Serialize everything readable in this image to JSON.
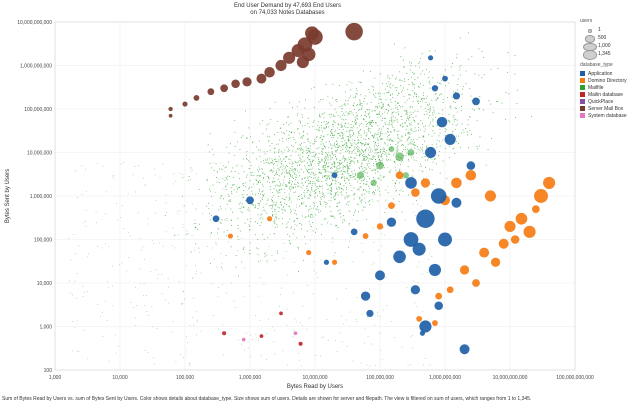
{
  "chart_data": {
    "type": "scatter",
    "title": "End User Demand by 47,693 End Users",
    "subtitle": "on 74,033 Notes Databases",
    "xlabel": "Bytes Read by Users",
    "ylabel": "Bytes Sent by Users",
    "x_scale": "log",
    "y_scale": "log",
    "xlim": [
      1000,
      100000000000
    ],
    "ylim": [
      100,
      10000000000
    ],
    "x_ticks": [
      "1,000",
      "10,000",
      "100,000",
      "1,000,000",
      "10,000,000",
      "100,000,000",
      "1,000,000,000",
      "10,000,000,000",
      "100,000,000,000"
    ],
    "y_ticks": [
      "100",
      "1,000",
      "10,000",
      "100,000",
      "1,000,000",
      "10,000,000",
      "100,000,000",
      "1,000,000,000",
      "10,000,000,000"
    ],
    "grid": true,
    "legend_position": "right",
    "size_legend": {
      "title": "users",
      "entries": [
        "1",
        "500",
        "1,000",
        "1,345"
      ]
    },
    "color_legend": {
      "title": "database_type",
      "entries": [
        {
          "name": "Application",
          "color": "#1f5fa8"
        },
        {
          "name": "Domino Directory",
          "color": "#f57c14"
        },
        {
          "name": "Mailfile",
          "color": "#2ca02c"
        },
        {
          "name": "Mailin database",
          "color": "#c0282a"
        },
        {
          "name": "QuickPlace",
          "color": "#8a4fa6"
        },
        {
          "name": "Server Mail Box",
          "color": "#7a3b2e"
        },
        {
          "name": "System database",
          "color": "#e377c2"
        }
      ]
    },
    "series": [
      {
        "name": "Server Mail Box",
        "points": [
          {
            "x": 40000000,
            "y": 6000000000,
            "users": 1200
          },
          {
            "x": 10000000,
            "y": 4500000000,
            "users": 900
          },
          {
            "x": 7000000,
            "y": 3000000000,
            "users": 800
          },
          {
            "x": 9000000,
            "y": 5500000000,
            "users": 700
          },
          {
            "x": 8000000,
            "y": 1800000000,
            "users": 650
          },
          {
            "x": 5500000,
            "y": 2200000000,
            "users": 600
          },
          {
            "x": 4000000,
            "y": 1500000000,
            "users": 500
          },
          {
            "x": 6500000,
            "y": 1200000000,
            "users": 500
          },
          {
            "x": 3000000,
            "y": 1000000000,
            "users": 400
          },
          {
            "x": 2000000,
            "y": 700000000,
            "users": 350
          },
          {
            "x": 1500000,
            "y": 500000000,
            "users": 300
          },
          {
            "x": 900000,
            "y": 420000000,
            "users": 250
          },
          {
            "x": 600000,
            "y": 380000000,
            "users": 200
          },
          {
            "x": 400000,
            "y": 300000000,
            "users": 150
          },
          {
            "x": 250000,
            "y": 250000000,
            "users": 100
          },
          {
            "x": 150000,
            "y": 180000000,
            "users": 60
          },
          {
            "x": 100000,
            "y": 130000000,
            "users": 40
          },
          {
            "x": 60000,
            "y": 100000000,
            "users": 20
          },
          {
            "x": 60000,
            "y": 70000000,
            "users": 10
          }
        ]
      },
      {
        "name": "Application",
        "points": [
          {
            "x": 500000000,
            "y": 300000,
            "users": 1345
          },
          {
            "x": 800000000,
            "y": 1000000,
            "users": 900
          },
          {
            "x": 300000000,
            "y": 100000,
            "users": 800
          },
          {
            "x": 1000000000,
            "y": 100000,
            "users": 700
          },
          {
            "x": 400000000,
            "y": 60000,
            "users": 600
          },
          {
            "x": 200000000,
            "y": 40000,
            "users": 550
          },
          {
            "x": 700000000,
            "y": 20000,
            "users": 500
          },
          {
            "x": 500000000,
            "y": 1000,
            "users": 500
          },
          {
            "x": 300000000,
            "y": 2000000,
            "users": 450
          },
          {
            "x": 1200000000,
            "y": 20000000,
            "users": 400
          },
          {
            "x": 600000000,
            "y": 10000000,
            "users": 400
          },
          {
            "x": 900000000,
            "y": 50000000,
            "users": 350
          },
          {
            "x": 1500000000,
            "y": 700000,
            "users": 300
          },
          {
            "x": 100000000,
            "y": 15000,
            "users": 300
          },
          {
            "x": 2000000000,
            "y": 300,
            "users": 300
          },
          {
            "x": 350000000,
            "y": 7000,
            "users": 250
          },
          {
            "x": 60000000,
            "y": 5000,
            "users": 250
          },
          {
            "x": 150000000,
            "y": 250000,
            "users": 250
          },
          {
            "x": 800000000,
            "y": 3000,
            "users": 200
          },
          {
            "x": 2500000000,
            "y": 5000000,
            "users": 200
          },
          {
            "x": 3000000000,
            "y": 150000000,
            "users": 150
          },
          {
            "x": 1000000,
            "y": 800000,
            "users": 150
          },
          {
            "x": 1500000000,
            "y": 200000000,
            "users": 120
          },
          {
            "x": 70000000,
            "y": 2000,
            "users": 120
          },
          {
            "x": 300000,
            "y": 300000,
            "users": 100
          },
          {
            "x": 40000000,
            "y": 150000,
            "users": 100
          },
          {
            "x": 700000000,
            "y": 300000000,
            "users": 80
          },
          {
            "x": 1000000000,
            "y": 500000000,
            "users": 60
          },
          {
            "x": 20000000,
            "y": 3000000,
            "users": 60
          },
          {
            "x": 600000000,
            "y": 1500000000,
            "users": 40
          },
          {
            "x": 15000000,
            "y": 30000,
            "users": 40
          },
          {
            "x": 450000000,
            "y": 700,
            "users": 40
          }
        ]
      },
      {
        "name": "Domino Directory",
        "points": [
          {
            "x": 30000000000,
            "y": 1000000,
            "users": 700
          },
          {
            "x": 40000000000,
            "y": 2000000,
            "users": 500
          },
          {
            "x": 20000000000,
            "y": 150000,
            "users": 500
          },
          {
            "x": 15000000000,
            "y": 300000,
            "users": 450
          },
          {
            "x": 10000000000,
            "y": 200000,
            "users": 400
          },
          {
            "x": 5000000000,
            "y": 1000000,
            "users": 400
          },
          {
            "x": 2500000000,
            "y": 3000000,
            "users": 350
          },
          {
            "x": 1500000000,
            "y": 2000000,
            "users": 350
          },
          {
            "x": 8000000000,
            "y": 80000,
            "users": 300
          },
          {
            "x": 4000000000,
            "y": 50000,
            "users": 300
          },
          {
            "x": 1000000000,
            "y": 800000,
            "users": 300
          },
          {
            "x": 6000000000,
            "y": 30000,
            "users": 250
          },
          {
            "x": 2000000000,
            "y": 20000,
            "users": 250
          },
          {
            "x": 500000000,
            "y": 2000000,
            "users": 250
          },
          {
            "x": 350000000,
            "y": 1200000,
            "users": 200
          },
          {
            "x": 12000000000,
            "y": 100000,
            "users": 200
          },
          {
            "x": 25000000000,
            "y": 500000,
            "users": 150
          },
          {
            "x": 3000000000,
            "y": 10000,
            "users": 150
          },
          {
            "x": 200000000,
            "y": 3000000,
            "users": 150
          },
          {
            "x": 1200000000,
            "y": 7000,
            "users": 100
          },
          {
            "x": 150000000,
            "y": 600000,
            "users": 100
          },
          {
            "x": 800000000,
            "y": 5000,
            "users": 100
          },
          {
            "x": 100000000,
            "y": 200000,
            "users": 80
          },
          {
            "x": 60000000,
            "y": 120000,
            "users": 60
          },
          {
            "x": 400000000,
            "y": 1500,
            "users": 60
          },
          {
            "x": 700000000,
            "y": 1200,
            "users": 60
          },
          {
            "x": 8000000,
            "y": 50000,
            "users": 40
          },
          {
            "x": 500000,
            "y": 120000,
            "users": 40
          },
          {
            "x": 2000000,
            "y": 300000,
            "users": 40
          },
          {
            "x": 20000000,
            "y": 30000,
            "users": 40
          }
        ]
      },
      {
        "name": "Mailfile",
        "points": [
          {
            "x": 200000000,
            "y": 8000000,
            "users": 200
          },
          {
            "x": 100000000,
            "y": 5000000,
            "users": 150
          },
          {
            "x": 50000000,
            "y": 3000000,
            "users": 120
          },
          {
            "x": 300000000,
            "y": 10000000,
            "users": 100
          },
          {
            "x": 80000000,
            "y": 2000000,
            "users": 80
          },
          {
            "x": 250000000,
            "y": 3000000,
            "users": 80
          },
          {
            "x": 150000000,
            "y": 12000000,
            "users": 60
          }
        ]
      },
      {
        "name": "Mailin database",
        "points": [
          {
            "x": 6000000,
            "y": 400,
            "users": 15
          },
          {
            "x": 400000,
            "y": 700,
            "users": 15
          },
          {
            "x": 1500000,
            "y": 600,
            "users": 10
          },
          {
            "x": 3000000,
            "y": 2000,
            "users": 10
          }
        ]
      },
      {
        "name": "System database",
        "points": [
          {
            "x": 5000000,
            "y": 700,
            "users": 10
          },
          {
            "x": 800000,
            "y": 500,
            "users": 8
          }
        ]
      }
    ],
    "mailfile_cloud": {
      "approximate": true,
      "x_range": [
        1000,
        10000000000
      ],
      "y_range": [
        100,
        1000000000
      ],
      "peak": {
        "x": 30000000,
        "y": 10000000
      }
    }
  },
  "footnote": "Sum of Bytes Read by Users vs. sum of Bytes Sent by Users.  Color shows details about database_type.  Size shows sum of users.  Details are shown for server and filepath.  The view is filtered on sum of users, which ranges from 1 to 1,345."
}
